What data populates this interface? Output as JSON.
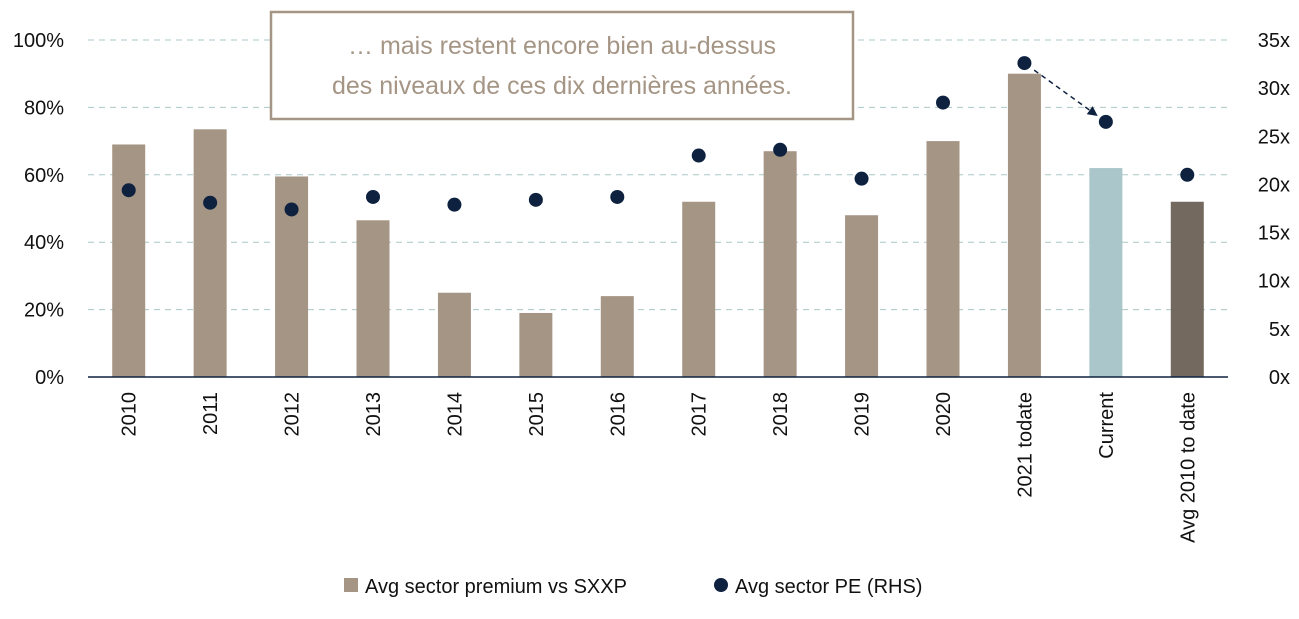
{
  "chart_data": {
    "type": "bar",
    "categories": [
      "2010",
      "2011",
      "2012",
      "2013",
      "2014",
      "2015",
      "2016",
      "2017",
      "2018",
      "2019",
      "2020",
      "2021 todate",
      "Current",
      "Avg 2010 to date"
    ],
    "series": [
      {
        "name": "Avg sector premium vs SXXP",
        "type": "bar",
        "axis": "left",
        "values": [
          69,
          73.5,
          59.5,
          46.5,
          25,
          19,
          24,
          52,
          67,
          48,
          70,
          90,
          62,
          52
        ],
        "colors": [
          "#a59585",
          "#a59585",
          "#a59585",
          "#a59585",
          "#a59585",
          "#a59585",
          "#a59585",
          "#a59585",
          "#a59585",
          "#a59585",
          "#a59585",
          "#a59585",
          "#abc6ca",
          "#73695e"
        ]
      },
      {
        "name": "Avg sector PE (RHS)",
        "type": "scatter",
        "axis": "right",
        "values": [
          19.4,
          18.1,
          17.4,
          18.7,
          17.9,
          18.4,
          18.7,
          23.0,
          23.6,
          20.6,
          28.5,
          32.6,
          26.5,
          21.0
        ],
        "color": "#0e2240"
      }
    ],
    "y_left": {
      "ylim": [
        0,
        100
      ],
      "ticks": [
        0,
        20,
        40,
        60,
        80,
        100
      ],
      "tick_labels": [
        "0%",
        "20%",
        "40%",
        "60%",
        "80%",
        "100%"
      ]
    },
    "y_right": {
      "ylim": [
        0,
        35
      ],
      "ticks": [
        0,
        5,
        10,
        15,
        20,
        25,
        30,
        35
      ],
      "tick_labels": [
        "0x",
        "5x",
        "10x",
        "15x",
        "20x",
        "25x",
        "30x",
        "35x"
      ]
    },
    "grid": true,
    "legend": "bottom",
    "title": "",
    "xlabel": "",
    "ylabel": "",
    "annotation": {
      "lines": [
        "… mais restent encore bien au-dessus",
        "des niveaux de ces dix dernières années."
      ],
      "border_color": "#a59585",
      "text_color": "#a59585"
    },
    "arrow": {
      "from_category": "2021 todate",
      "to_category": "Current",
      "series": "Avg sector PE (RHS)",
      "color": "#0e2240"
    }
  }
}
